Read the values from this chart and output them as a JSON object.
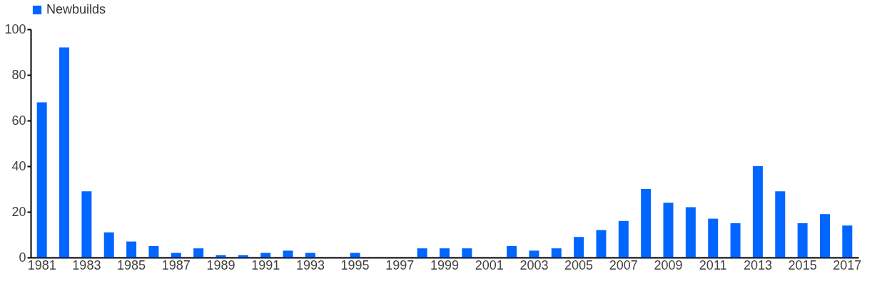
{
  "chart_data": {
    "type": "bar",
    "categories": [
      "1981",
      null,
      "1983",
      null,
      "1985",
      null,
      "1987",
      null,
      "1989",
      null,
      "1991",
      null,
      "1993",
      null,
      "1995",
      null,
      "1997",
      null,
      "1999",
      null,
      "2001",
      null,
      "2003",
      null,
      "2005",
      null,
      "2007",
      null,
      "2009",
      null,
      "2011",
      null,
      "2013",
      null,
      "2015",
      null,
      "2017"
    ],
    "series": [
      {
        "name": "Newbuilds",
        "color": "#0066ff",
        "values": [
          68,
          92,
          29,
          11,
          7,
          5,
          2,
          4,
          1,
          1,
          2,
          3,
          2,
          0,
          2,
          0,
          0,
          4,
          4,
          4,
          0,
          5,
          3,
          4,
          9,
          12,
          16,
          30,
          24,
          22,
          17,
          15,
          40,
          29,
          15,
          19,
          14
        ]
      }
    ],
    "ylim": [
      0,
      100
    ],
    "yticks": [
      0,
      20,
      40,
      60,
      80,
      100
    ],
    "grid": false,
    "legend": "top"
  }
}
